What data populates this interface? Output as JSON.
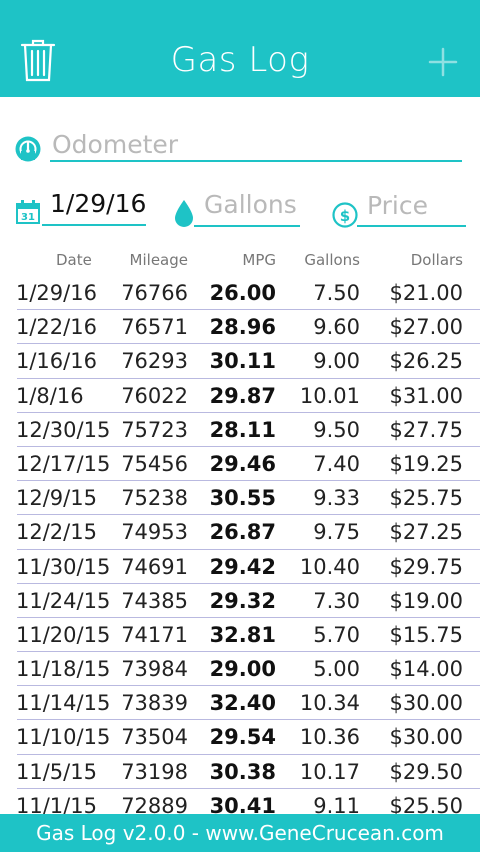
{
  "header": {
    "title": "Gas Log",
    "trash_icon": "trash-icon",
    "add_icon": "plus-icon"
  },
  "form": {
    "odometer_placeholder": "Odometer",
    "date_value": "1/29/16",
    "gallons_placeholder": "Gallons",
    "price_placeholder": "Price"
  },
  "table": {
    "columns": [
      "Date",
      "Mileage",
      "MPG",
      "Gallons",
      "Dollars"
    ],
    "rows": [
      [
        "1/29/16",
        "76766",
        "26.00",
        "7.50",
        "$21.00"
      ],
      [
        "1/22/16",
        "76571",
        "28.96",
        "9.60",
        "$27.00"
      ],
      [
        "1/16/16",
        "76293",
        "30.11",
        "9.00",
        "$26.25"
      ],
      [
        "1/8/16",
        "76022",
        "29.87",
        "10.01",
        "$31.00"
      ],
      [
        "12/30/15",
        "75723",
        "28.11",
        "9.50",
        "$27.75"
      ],
      [
        "12/17/15",
        "75456",
        "29.46",
        "7.40",
        "$19.25"
      ],
      [
        "12/9/15",
        "75238",
        "30.55",
        "9.33",
        "$25.75"
      ],
      [
        "12/2/15",
        "74953",
        "26.87",
        "9.75",
        "$27.25"
      ],
      [
        "11/30/15",
        "74691",
        "29.42",
        "10.40",
        "$29.75"
      ],
      [
        "11/24/15",
        "74385",
        "29.32",
        "7.30",
        "$19.00"
      ],
      [
        "11/20/15",
        "74171",
        "32.81",
        "5.70",
        "$15.75"
      ],
      [
        "11/18/15",
        "73984",
        "29.00",
        "5.00",
        "$14.00"
      ],
      [
        "11/14/15",
        "73839",
        "32.40",
        "10.34",
        "$30.00"
      ],
      [
        "11/10/15",
        "73504",
        "29.54",
        "10.36",
        "$30.00"
      ],
      [
        "11/5/15",
        "73198",
        "30.38",
        "10.17",
        "$29.50"
      ],
      [
        "11/1/15",
        "72889",
        "30.41",
        "9.11",
        "$25.50"
      ]
    ]
  },
  "footer": {
    "text": "Gas Log v2.0.0 - www.GeneCrucean.com"
  },
  "colors": {
    "accent": "#1ec3c6",
    "separator": "#b9b9e0"
  }
}
